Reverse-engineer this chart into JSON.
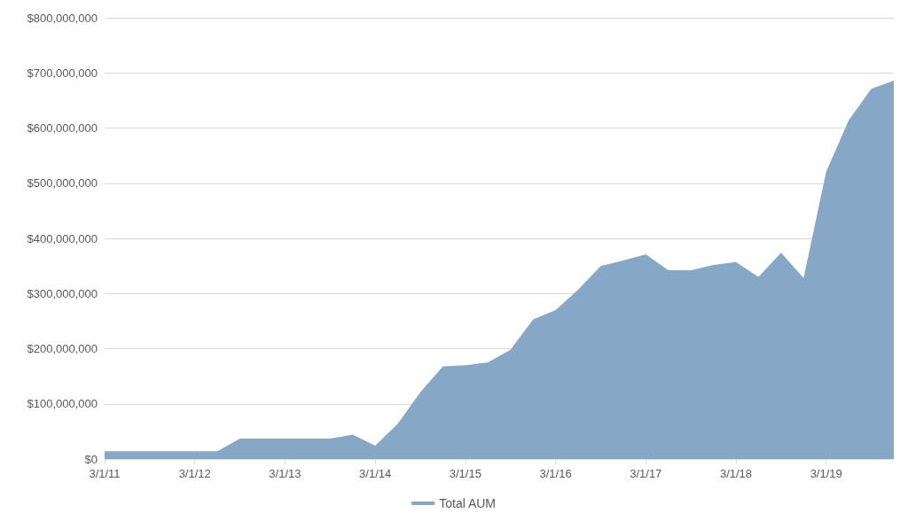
{
  "chart_data": {
    "type": "area",
    "categories": [
      "3/1/11",
      null,
      null,
      null,
      "3/1/12",
      null,
      null,
      null,
      "3/1/13",
      null,
      null,
      null,
      "3/1/14",
      null,
      null,
      null,
      "3/1/15",
      null,
      null,
      null,
      "3/1/16",
      null,
      null,
      null,
      "3/1/17",
      null,
      null,
      null,
      "3/1/18",
      null,
      null,
      null,
      "3/1/19",
      null,
      null,
      null
    ],
    "series": [
      {
        "name": "Total AUM",
        "color": "#87a7c7",
        "values": [
          14000000,
          14000000,
          14000000,
          14000000,
          14000000,
          14000000,
          37000000,
          37000000,
          37000000,
          37000000,
          37000000,
          44000000,
          24000000,
          64000000,
          121000000,
          168000000,
          170000000,
          175000000,
          198000000,
          253000000,
          270000000,
          307000000,
          350000000,
          360000000,
          371000000,
          342000000,
          342000000,
          352000000,
          357000000,
          330000000,
          374000000,
          328000000,
          521000000,
          614000000,
          671000000,
          686000000
        ]
      }
    ],
    "ylim": [
      0,
      800000000
    ],
    "yticks": [
      {
        "value": 0,
        "label": "$0"
      },
      {
        "value": 100000000,
        "label": "$100,000,000"
      },
      {
        "value": 200000000,
        "label": "$200,000,000"
      },
      {
        "value": 300000000,
        "label": "$300,000,000"
      },
      {
        "value": 400000000,
        "label": "$400,000,000"
      },
      {
        "value": 500000000,
        "label": "$500,000,000"
      },
      {
        "value": 600000000,
        "label": "$600,000,000"
      },
      {
        "value": 700000000,
        "label": "$700,000,000"
      },
      {
        "value": 800000000,
        "label": "$800,000,000"
      }
    ],
    "grid": "y",
    "legend": "bottom"
  }
}
